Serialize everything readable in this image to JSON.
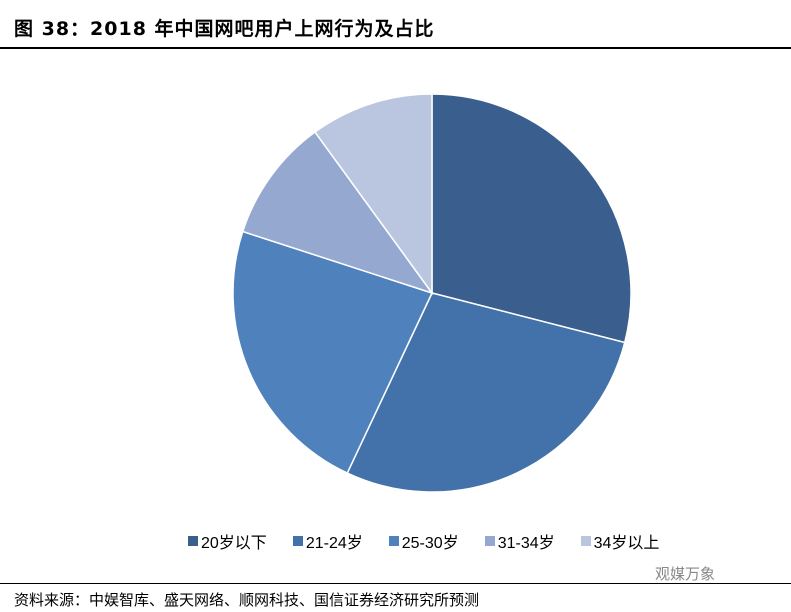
{
  "title": "图 38：2018 年中国网吧用户上网行为及占比",
  "source": "资料来源：中娱智库、盛天网络、顺网科技、国信证券经济研究所预测",
  "watermark": "观媒万象",
  "chart_data": {
    "type": "pie",
    "title": "图 38：2018 年中国网吧用户上网行为及占比",
    "categories": [
      "20岁以下",
      "21-24岁",
      "25-30岁",
      "31-34岁",
      "34岁以上"
    ],
    "values": [
      29,
      28,
      23,
      10,
      10
    ],
    "colors": [
      "#3A5F8E",
      "#4372AA",
      "#4F81BD",
      "#94A8D0",
      "#BAC5DF"
    ],
    "legend_position": "bottom",
    "start_angle": "12 o'clock, clockwise"
  }
}
